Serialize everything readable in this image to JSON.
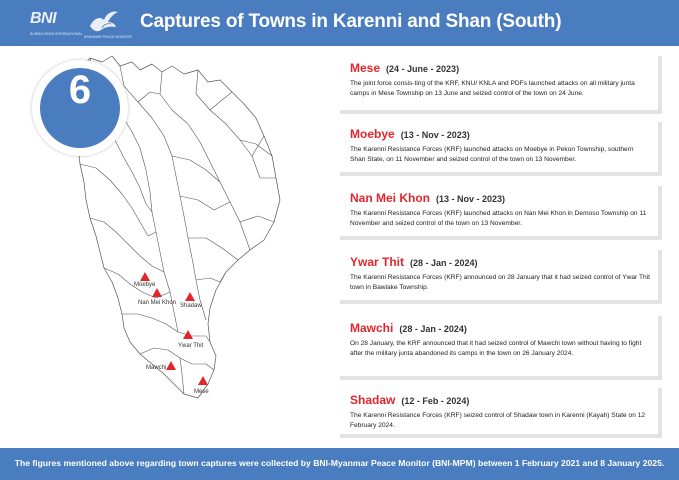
{
  "header": {
    "title": "Captures of Towns in Karenni and Shan (South)",
    "bni_logo_text": "BNI",
    "bni_logo_sub": "BURMA NEWS INTERNATIONAL",
    "mpm_logo_sub": "MYANMAR PEACE MONITOR"
  },
  "count_badge": "6",
  "map_labels": {
    "moebye": "Moebye",
    "nan_mei_khon": "Nan Mei Khon",
    "shadaw": "Shadaw",
    "ywar_thit": "Ywar Thit",
    "mawchi": "Mawchi",
    "mese": "Mese"
  },
  "events": [
    {
      "town": "Mese",
      "date": "(24 - June  - 2023)",
      "desc": "The joint force consis-ting of the KRF, KNU/ KNLA and PDFs launched attacks on all military junta camps in Mese Township on 13 June and seized control of the town on 24 June."
    },
    {
      "town": "Moebye",
      "date": "(13 - Nov - 2023)",
      "desc": "The Karenni Resistance Forces (KRF) launched attacks on Moebye in Pekon Township, southern Shan State, on 11 November and seized control of the town on 13 November."
    },
    {
      "town": "Nan Mei Khon",
      "date": "(13 - Nov - 2023)",
      "desc": "The Karenni Resistance Forces (KRF) launched attacks on Nan Mei Khon in Demoso Township on 11 November and seized control of the town on 13 November."
    },
    {
      "town": "Ywar Thit",
      "date": "(28 - Jan - 2024)",
      "desc": "The Karenni Resistance Forces (KRF) announced on 28 January that it had seized control of Ywar Thit town in Bawlake Township."
    },
    {
      "town": "Mawchi",
      "date": "(28 - Jan - 2024)",
      "desc": "On 28 January, the KRF announced that it had seized control of Mawchi town without having to fight after the military junta abandoned its camps in the town on 26 January 2024."
    },
    {
      "town": "Shadaw",
      "date": "(12 - Feb - 2024)",
      "desc": "The Karenni Resistance Forces (KRF) seized control of Shadaw town in Karenni (Kayah) State on 12 February 2024."
    }
  ],
  "footer": "The figures mentioned above regarding town captures were collected by BNI-Myanmar Peace Monitor (BNI-MPM) between 1 February 2021 and 8 January 2025.",
  "colors": {
    "header_blue": "#4a7cc0",
    "town_red": "#e1262d",
    "marker_red": "#e1262d"
  }
}
